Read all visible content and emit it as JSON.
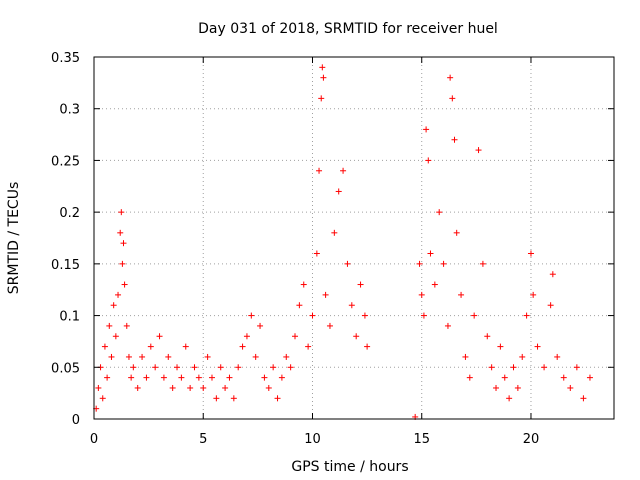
{
  "chart_data": {
    "type": "scatter",
    "title": "Day 031 of 2018, SRMTID for receiver huel",
    "xlabel": "GPS time / hours",
    "ylabel": "SRMTID / TECUs",
    "xlim": [
      0,
      23.8
    ],
    "ylim": [
      0,
      0.35
    ],
    "x_ticks": [
      0,
      5,
      10,
      15,
      20
    ],
    "x_tick_labels": [
      "0",
      "5",
      "10",
      "15",
      "20"
    ],
    "y_ticks": [
      0,
      0.05,
      0.1,
      0.15,
      0.2,
      0.25,
      0.3,
      0.35
    ],
    "y_tick_labels": [
      "0",
      "0.05",
      "0.1",
      "0.15",
      "0.2",
      "0.25",
      "0.3",
      "0.35"
    ],
    "grid": true,
    "marker": "+",
    "color": "#ff0000",
    "series": [
      {
        "name": "SRMTID",
        "points": [
          [
            0.1,
            0.01
          ],
          [
            0.2,
            0.03
          ],
          [
            0.3,
            0.05
          ],
          [
            0.4,
            0.02
          ],
          [
            0.5,
            0.07
          ],
          [
            0.6,
            0.04
          ],
          [
            0.7,
            0.09
          ],
          [
            0.8,
            0.06
          ],
          [
            0.9,
            0.11
          ],
          [
            1.0,
            0.08
          ],
          [
            1.1,
            0.12
          ],
          [
            1.2,
            0.18
          ],
          [
            1.25,
            0.2
          ],
          [
            1.3,
            0.15
          ],
          [
            1.35,
            0.17
          ],
          [
            1.4,
            0.13
          ],
          [
            1.5,
            0.09
          ],
          [
            1.6,
            0.06
          ],
          [
            1.7,
            0.04
          ],
          [
            1.8,
            0.05
          ],
          [
            2.0,
            0.03
          ],
          [
            2.2,
            0.06
          ],
          [
            2.4,
            0.04
          ],
          [
            2.6,
            0.07
          ],
          [
            2.8,
            0.05
          ],
          [
            3.0,
            0.08
          ],
          [
            3.2,
            0.04
          ],
          [
            3.4,
            0.06
          ],
          [
            3.6,
            0.03
          ],
          [
            3.8,
            0.05
          ],
          [
            4.0,
            0.04
          ],
          [
            4.2,
            0.07
          ],
          [
            4.4,
            0.03
          ],
          [
            4.6,
            0.05
          ],
          [
            4.8,
            0.04
          ],
          [
            5.0,
            0.03
          ],
          [
            5.2,
            0.06
          ],
          [
            5.4,
            0.04
          ],
          [
            5.6,
            0.02
          ],
          [
            5.8,
            0.05
          ],
          [
            6.0,
            0.03
          ],
          [
            6.2,
            0.04
          ],
          [
            6.4,
            0.02
          ],
          [
            6.6,
            0.05
          ],
          [
            6.8,
            0.07
          ],
          [
            7.0,
            0.08
          ],
          [
            7.2,
            0.1
          ],
          [
            7.4,
            0.06
          ],
          [
            7.6,
            0.09
          ],
          [
            7.8,
            0.04
          ],
          [
            8.0,
            0.03
          ],
          [
            8.2,
            0.05
          ],
          [
            8.4,
            0.02
          ],
          [
            8.6,
            0.04
          ],
          [
            8.8,
            0.06
          ],
          [
            9.0,
            0.05
          ],
          [
            9.2,
            0.08
          ],
          [
            9.4,
            0.11
          ],
          [
            9.6,
            0.13
          ],
          [
            9.8,
            0.07
          ],
          [
            10.0,
            0.1
          ],
          [
            10.2,
            0.16
          ],
          [
            10.3,
            0.24
          ],
          [
            10.4,
            0.31
          ],
          [
            10.45,
            0.34
          ],
          [
            10.5,
            0.33
          ],
          [
            10.6,
            0.12
          ],
          [
            10.8,
            0.09
          ],
          [
            11.0,
            0.18
          ],
          [
            11.2,
            0.22
          ],
          [
            11.4,
            0.24
          ],
          [
            11.6,
            0.15
          ],
          [
            11.8,
            0.11
          ],
          [
            12.0,
            0.08
          ],
          [
            12.2,
            0.13
          ],
          [
            12.4,
            0.1
          ],
          [
            12.5,
            0.07
          ],
          [
            14.7,
            0.002
          ],
          [
            14.9,
            0.15
          ],
          [
            15.0,
            0.12
          ],
          [
            15.1,
            0.1
          ],
          [
            15.2,
            0.28
          ],
          [
            15.3,
            0.25
          ],
          [
            15.4,
            0.16
          ],
          [
            15.6,
            0.13
          ],
          [
            15.8,
            0.2
          ],
          [
            16.0,
            0.15
          ],
          [
            16.2,
            0.09
          ],
          [
            16.3,
            0.33
          ],
          [
            16.4,
            0.31
          ],
          [
            16.5,
            0.27
          ],
          [
            16.6,
            0.18
          ],
          [
            16.8,
            0.12
          ],
          [
            17.0,
            0.06
          ],
          [
            17.2,
            0.04
          ],
          [
            17.4,
            0.1
          ],
          [
            17.6,
            0.26
          ],
          [
            17.8,
            0.15
          ],
          [
            18.0,
            0.08
          ],
          [
            18.2,
            0.05
          ],
          [
            18.4,
            0.03
          ],
          [
            18.6,
            0.07
          ],
          [
            18.8,
            0.04
          ],
          [
            19.0,
            0.02
          ],
          [
            19.2,
            0.05
          ],
          [
            19.4,
            0.03
          ],
          [
            19.6,
            0.06
          ],
          [
            19.8,
            0.1
          ],
          [
            20.0,
            0.16
          ],
          [
            20.1,
            0.12
          ],
          [
            20.3,
            0.07
          ],
          [
            20.6,
            0.05
          ],
          [
            20.9,
            0.11
          ],
          [
            21.0,
            0.14
          ],
          [
            21.2,
            0.06
          ],
          [
            21.5,
            0.04
          ],
          [
            21.8,
            0.03
          ],
          [
            22.1,
            0.05
          ],
          [
            22.4,
            0.02
          ],
          [
            22.7,
            0.04
          ]
        ]
      }
    ]
  }
}
